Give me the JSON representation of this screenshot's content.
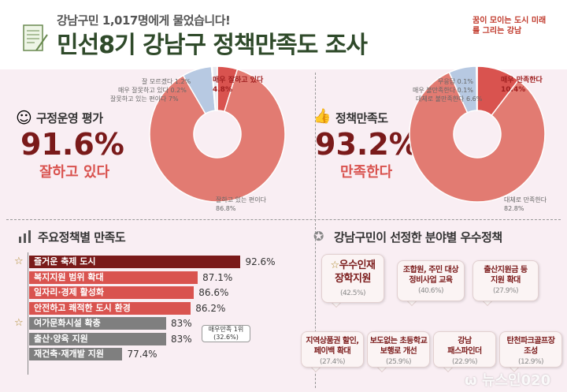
{
  "header": {
    "subtitle": "강남구민 1,017명에게 물었습니다!",
    "title": "민선8기 강남구 정책만족도 조사",
    "logo_text": "꿈이 모이는 도시 미래를 그리는 강남",
    "icon": "document-pen-icon"
  },
  "colors": {
    "dark_red": "#7a1a1a",
    "accent_red": "#d9534f",
    "salmon": "#e27b72",
    "light_blue": "#b7c9e2",
    "gray": "#7f7f7f",
    "panel_bg": "#f9eef3",
    "title_green": "#2f4a2a"
  },
  "chart_data": [
    {
      "type": "pie",
      "donut": true,
      "title": "구정운영 평가",
      "headline_value": "91.6%",
      "headline_label": "잘하고 있다",
      "slices": [
        {
          "label": "매우 잘하고 있다",
          "value": 4.8,
          "display": "4.8%",
          "color": "#d9534f"
        },
        {
          "label": "잘하고 있는 편이다",
          "value": 86.8,
          "display": "86.8%",
          "color": "#e27b72"
        },
        {
          "label": "잘못하고 있는 편이다",
          "value": 7,
          "display": "7%",
          "color": "#b7c9e2"
        },
        {
          "label": "매우 잘못하고 있다",
          "value": 0.2,
          "display": "0.2%",
          "color": "#9bb3d4"
        },
        {
          "label": "잘 모르겠다",
          "value": 1.2,
          "display": "1.2%",
          "color": "#e8e8ee"
        }
      ]
    },
    {
      "type": "pie",
      "donut": true,
      "title": "정책만족도",
      "headline_value": "93.2%",
      "headline_label": "만족한다",
      "slices": [
        {
          "label": "매우 만족한다",
          "value": 10.4,
          "display": "10.4%",
          "color": "#d9534f"
        },
        {
          "label": "대체로 만족한다",
          "value": 82.8,
          "display": "82.8%",
          "color": "#e27b72"
        },
        {
          "label": "대체로 불만족한다",
          "value": 6.6,
          "display": "6.6%",
          "color": "#b7c9e2"
        },
        {
          "label": "매우 불만족한다",
          "value": 0.1,
          "display": "0.1%",
          "color": "#9bb3d4"
        },
        {
          "label": "무응답",
          "value": 0.1,
          "display": "0.1%",
          "color": "#e8e8ee"
        }
      ]
    },
    {
      "type": "bar",
      "orientation": "horizontal",
      "title": "주요정책별 만족도",
      "categories": [
        "즐거운 축제 도시",
        "복지지원 범위 확대",
        "일자리·경제 활성화",
        "안전하고 쾌적한 도시 환경",
        "여가문화시설 확충",
        "출산·양육 지원",
        "재건축·재개발 지원"
      ],
      "values": [
        92.6,
        87.1,
        86.6,
        86.2,
        83,
        83,
        77.4
      ],
      "labels": [
        "92.6%",
        "87.1%",
        "86.6%",
        "86.2%",
        "83%",
        "83%",
        "77.4%"
      ],
      "bar_colors": [
        "#7a1a1a",
        "#d9534f",
        "#d9534f",
        "#d9534f",
        "#7f7f7f",
        "#7f7f7f",
        "#7f7f7f"
      ],
      "starred": [
        0,
        4
      ],
      "annotation": {
        "line1": "매우만족 1위",
        "line2": "(32.6%)"
      }
    }
  ],
  "best": {
    "title": "강남구민이 선정한 분야별 우수정책",
    "items": [
      {
        "l1": "우수인재",
        "l2": "장학지원",
        "pct": "(42.5%)"
      },
      {
        "l1": "조합원, 주민 대상",
        "l2": "정비사업 교육",
        "pct": "(40.6%)"
      },
      {
        "l1": "출산지원금 등",
        "l2": "지원 확대",
        "pct": "(27.9%)"
      },
      {
        "l1": "지역상품권 할인,",
        "l2": "페이백 확대",
        "pct": "(27.4%)"
      },
      {
        "l1": "보도없는 초등학교",
        "l2": "보행로 개선",
        "pct": "(25.9%)"
      },
      {
        "l1": "강남",
        "l2": "패스파인더",
        "pct": "(22.9%)"
      },
      {
        "l1": "탄천파크골프장",
        "l2": "조성",
        "pct": "(12.9%)"
      }
    ]
  },
  "watermark": {
    "text": "뉴스인020",
    "tag": "Online to Offline"
  }
}
